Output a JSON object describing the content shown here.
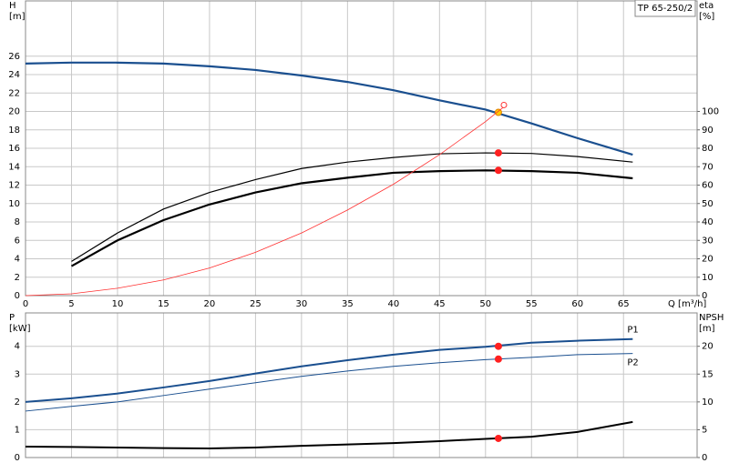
{
  "chart_data": [
    {
      "type": "line",
      "title": "TP 65-250/2",
      "ylabel": [
        "H",
        "[m]"
      ],
      "y2label": [
        "eta",
        "[%]"
      ],
      "xlabel": "Q [m³/h]",
      "xlim": [
        0,
        73
      ],
      "ylim": [
        0,
        32
      ],
      "y2lim": [
        0,
        160
      ],
      "xticks": [
        0,
        5,
        10,
        15,
        20,
        25,
        30,
        35,
        40,
        45,
        50,
        55,
        60,
        65
      ],
      "yticks": [
        0,
        2,
        4,
        6,
        8,
        10,
        12,
        14,
        16,
        18,
        20,
        22,
        24,
        26
      ],
      "y2ticks": [
        0,
        10,
        20,
        30,
        40,
        50,
        60,
        70,
        80,
        90,
        100
      ],
      "grid": true,
      "duty_x": 51.4,
      "duty_color": "#ff2020",
      "series": [
        {
          "color": "#1a4f8f",
          "width": 2.2,
          "x": [
            0,
            5,
            10,
            15,
            20,
            25,
            30,
            35,
            40,
            45,
            50,
            55,
            60,
            66
          ],
          "values": [
            25.2,
            25.3,
            25.3,
            25.2,
            24.9,
            24.5,
            23.9,
            23.2,
            22.3,
            21.2,
            20.2,
            18.7,
            17.1,
            15.3
          ],
          "duty_value": 19.9,
          "duty_color": "#ffcc00"
        },
        {
          "color": "#000000",
          "width": 1.2,
          "axis": "y2",
          "x": [
            5,
            10,
            15,
            20,
            25,
            30,
            35,
            40,
            45,
            50,
            55,
            60,
            66
          ],
          "values": [
            18.6,
            34,
            47,
            56,
            63,
            69,
            72.5,
            75,
            77,
            77.5,
            77.2,
            75.5,
            72.5
          ],
          "duty_value": 77.5
        },
        {
          "color": "#000000",
          "width": 2.2,
          "axis": "y2",
          "x": [
            5,
            10,
            15,
            20,
            25,
            30,
            35,
            40,
            45,
            50,
            55,
            60,
            66
          ],
          "values": [
            16,
            30,
            41,
            49.5,
            56,
            61,
            64,
            66.7,
            67.6,
            68,
            67.6,
            66.7,
            63.7
          ],
          "duty_value": 68
        },
        {
          "color": "#ff3030",
          "width": 0.8,
          "x": [
            0,
            5,
            10,
            15,
            20,
            25,
            30,
            35,
            40,
            45,
            50,
            52
          ],
          "values": [
            0,
            0.2,
            0.8,
            1.7,
            3.0,
            4.7,
            6.8,
            9.3,
            12.1,
            15.3,
            18.9,
            20.5
          ],
          "end_marker": true
        }
      ]
    },
    {
      "type": "line",
      "ylabel": [
        "P",
        "[kW]"
      ],
      "y2label": [
        "NPSH",
        "[m]"
      ],
      "xlim": [
        0,
        73
      ],
      "ylim": [
        0,
        5.2
      ],
      "y2lim": [
        0,
        26
      ],
      "xticks": [
        0,
        5,
        10,
        15,
        20,
        25,
        30,
        35,
        40,
        45,
        50,
        55,
        60,
        65
      ],
      "xtick_labels": false,
      "yticks": [
        0,
        1,
        2,
        3,
        4
      ],
      "y2ticks": [
        0,
        5,
        10,
        15,
        20
      ],
      "grid": true,
      "duty_x": 51.4,
      "duty_color": "#ff2020",
      "series": [
        {
          "name": "P1",
          "label_side": "above",
          "color": "#1a4f8f",
          "width": 2,
          "x": [
            0,
            5,
            10,
            15,
            20,
            25,
            30,
            35,
            40,
            45,
            50,
            55,
            60,
            66
          ],
          "values": [
            2.0,
            2.13,
            2.3,
            2.52,
            2.75,
            3.02,
            3.28,
            3.5,
            3.7,
            3.87,
            3.98,
            4.13,
            4.2,
            4.26
          ],
          "duty_value": 4.0
        },
        {
          "name": "P2",
          "label_side": "below",
          "color": "#1a4f8f",
          "width": 1,
          "x": [
            0,
            5,
            10,
            15,
            20,
            25,
            30,
            35,
            40,
            45,
            50,
            55,
            60,
            66
          ],
          "values": [
            1.67,
            1.84,
            2.0,
            2.23,
            2.46,
            2.69,
            2.92,
            3.11,
            3.28,
            3.41,
            3.52,
            3.6,
            3.7,
            3.74
          ],
          "duty_value": 3.54
        },
        {
          "color": "#000000",
          "width": 2,
          "axis": "y2",
          "x": [
            0,
            5,
            10,
            15,
            20,
            25,
            30,
            35,
            40,
            45,
            50,
            55,
            60,
            66
          ],
          "values": [
            1.97,
            1.9,
            1.8,
            1.7,
            1.64,
            1.8,
            2.1,
            2.35,
            2.6,
            2.95,
            3.35,
            3.75,
            4.6,
            6.4
          ],
          "duty_value": 3.44
        }
      ]
    }
  ]
}
